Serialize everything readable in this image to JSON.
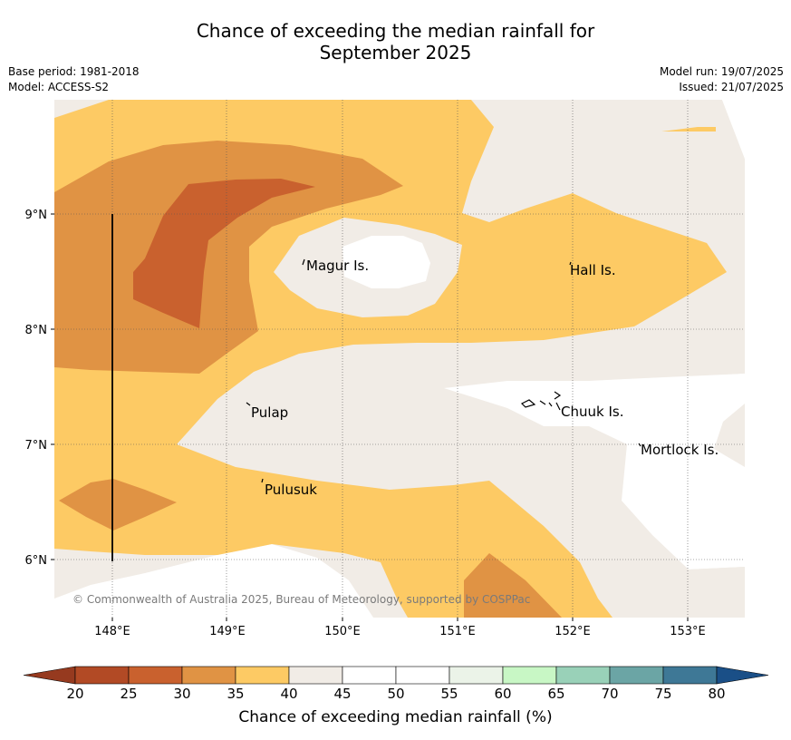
{
  "header": {
    "title_line1": "Chance of exceeding the median rainfall for",
    "title_line2": "September 2025",
    "base_period": "Base period: 1981-2018",
    "model": "Model: ACCESS-S2",
    "model_run": "Model run: 19/07/2025",
    "issued": "Issued: 21/07/2025"
  },
  "map": {
    "x_ticks": [
      "148°E",
      "149°E",
      "150°E",
      "151°E",
      "152°E",
      "153°E"
    ],
    "y_ticks": [
      "9°N",
      "8°N",
      "7°N",
      "6°N"
    ],
    "places": [
      "Magur Is.",
      "Hall Is.",
      "Pulap",
      "Chuuk Is.",
      "Mortlock Is.",
      "Pulusuk"
    ],
    "copyright": "© Commonwealth of Australia 2025, Bureau of Meteorology, supported by COSPPac"
  },
  "colorbar": {
    "label": "Chance of exceeding median rainfall (%)",
    "ticks": [
      "20",
      "25",
      "30",
      "35",
      "40",
      "45",
      "50",
      "55",
      "60",
      "65",
      "70",
      "75",
      "80"
    ],
    "colors": [
      "#b24a25",
      "#c9612e",
      "#e09344",
      "#fdca64",
      "#f1ece6",
      "#ffffff",
      "#ffffff",
      "#ebf3e8",
      "#c8f7c5",
      "#99d1b8",
      "#6ba5a5",
      "#3e7896"
    ],
    "low_extend_color": "#963a1f",
    "high_extend_color": "#1a4f87"
  }
}
